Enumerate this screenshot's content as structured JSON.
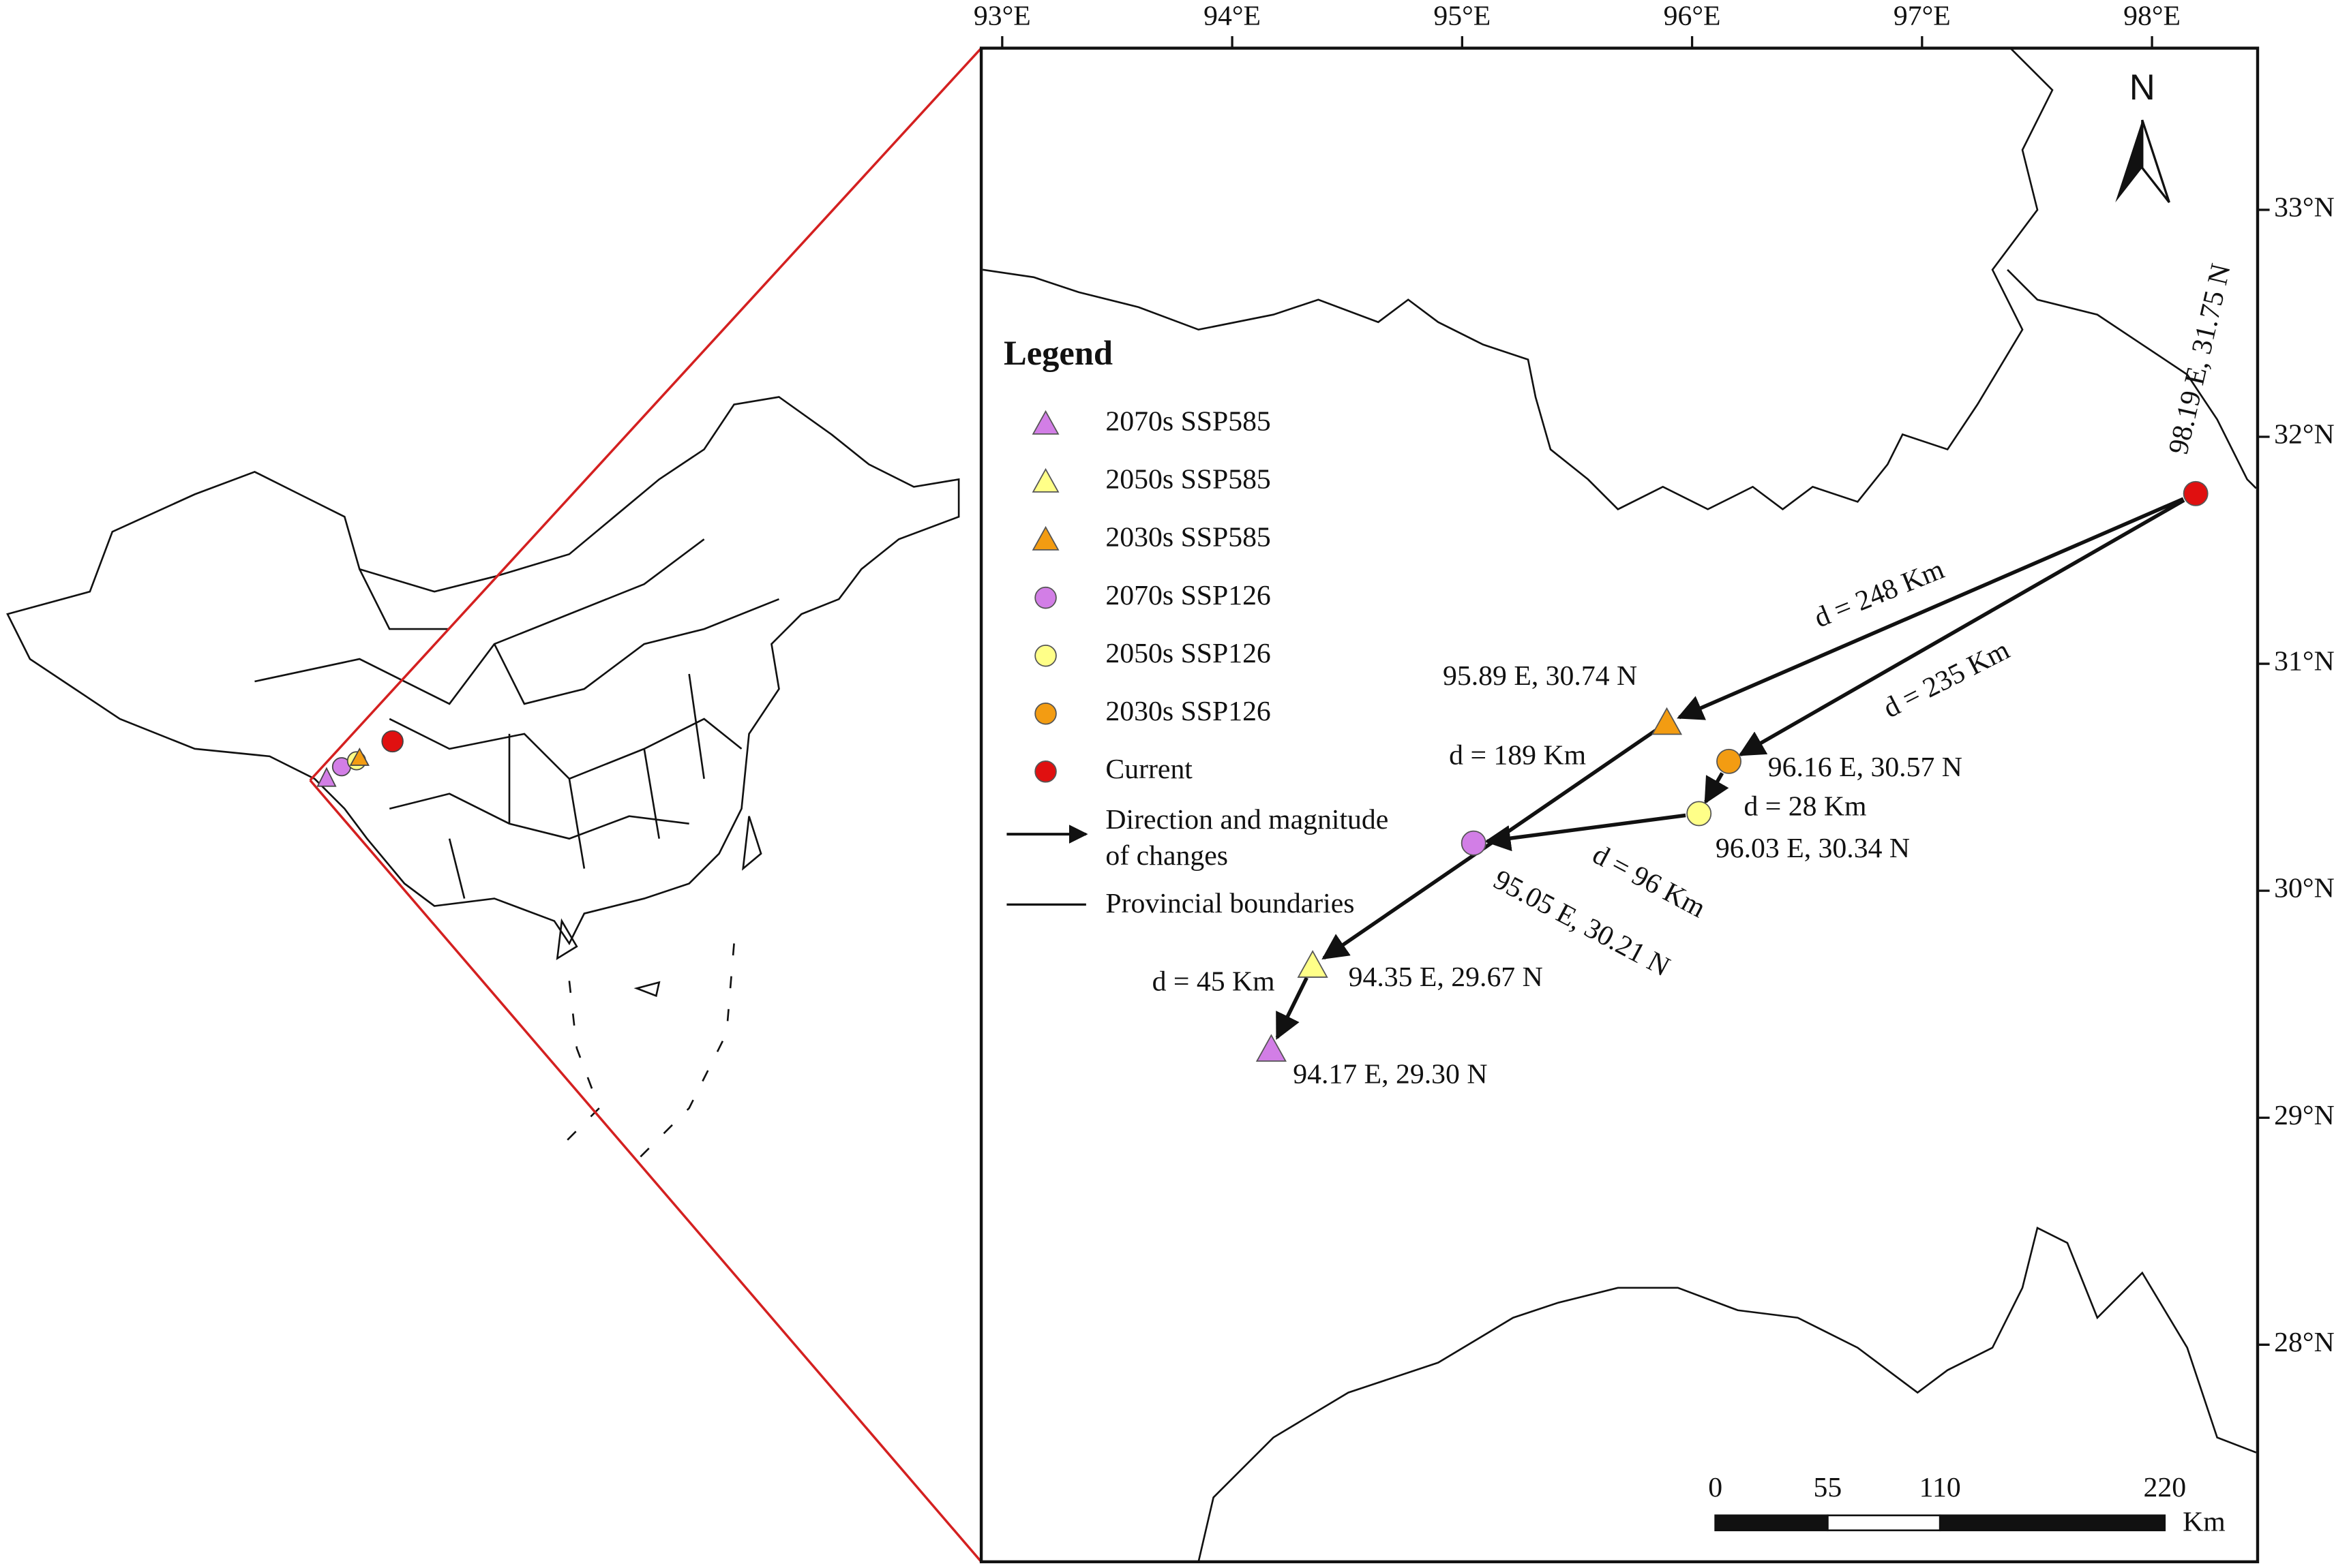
{
  "map": {
    "lon_ticks": [
      {
        "value": 93,
        "label": "93°E"
      },
      {
        "value": 94,
        "label": "94°E"
      },
      {
        "value": 95,
        "label": "95°E"
      },
      {
        "value": 96,
        "label": "96°E"
      },
      {
        "value": 97,
        "label": "97°E"
      },
      {
        "value": 98,
        "label": "98°E"
      }
    ],
    "lat_ticks": [
      {
        "value": 33,
        "label": "33°N"
      },
      {
        "value": 32,
        "label": "32°N"
      },
      {
        "value": 31,
        "label": "31°N"
      },
      {
        "value": 30,
        "label": "30°N"
      },
      {
        "value": 29,
        "label": "29°N"
      },
      {
        "value": 28,
        "label": "28°N"
      }
    ],
    "north": "N",
    "legend": {
      "title": "Legend",
      "items": [
        {
          "label": "2070s SSP585",
          "shape": "triangle",
          "color": "#d27ee6"
        },
        {
          "label": "2050s SSP585",
          "shape": "triangle",
          "color": "#ffff88"
        },
        {
          "label": "2030s SSP585",
          "shape": "triangle",
          "color": "#f39c12"
        },
        {
          "label": "2070s SSP126",
          "shape": "circle",
          "color": "#d27ee6"
        },
        {
          "label": "2050s SSP126",
          "shape": "circle",
          "color": "#ffff88"
        },
        {
          "label": "2030s SSP126",
          "shape": "circle",
          "color": "#f39c12"
        },
        {
          "label": "Current",
          "shape": "circle",
          "color": "#e01010"
        }
      ],
      "arrow_label": [
        "Direction and magnitude",
        "of changes"
      ],
      "boundary_label": "Provincial boundaries"
    },
    "points": [
      {
        "lon": 98.19,
        "lat": 31.75,
        "label": "98.19 E, 31.75 N",
        "shape": "circle",
        "color": "#e01010"
      },
      {
        "lon": 95.89,
        "lat": 30.74,
        "label": "95.89 E, 30.74 N",
        "shape": "triangle",
        "color": "#f39c12"
      },
      {
        "lon": 96.16,
        "lat": 30.57,
        "label": "96.16 E, 30.57 N",
        "shape": "circle",
        "color": "#f39c12"
      },
      {
        "lon": 96.03,
        "lat": 30.34,
        "label": "96.03 E, 30.34 N",
        "shape": "circle",
        "color": "#ffff88"
      },
      {
        "lon": 95.05,
        "lat": 30.21,
        "label": "95.05 E, 30.21 N",
        "shape": "circle",
        "color": "#d27ee6"
      },
      {
        "lon": 94.35,
        "lat": 29.67,
        "label": "94.35 E, 29.67 N",
        "shape": "triangle",
        "color": "#ffff88"
      },
      {
        "lon": 94.17,
        "lat": 29.3,
        "label": "94.17 E, 29.30 N",
        "shape": "triangle",
        "color": "#d27ee6"
      }
    ],
    "distances": [
      "d = 248 Km",
      "d = 235 Km",
      "d = 189 Km",
      "d = 28 Km",
      "d = 96 Km",
      "d = 45 Km"
    ],
    "scale_bar": {
      "ticks": [
        0,
        55,
        110,
        220
      ],
      "unit": "Km"
    }
  }
}
